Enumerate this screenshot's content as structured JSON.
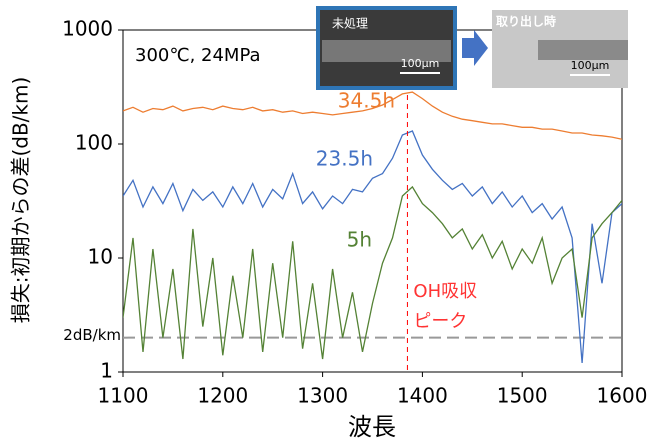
{
  "chart_data": {
    "type": "line",
    "annotation": "300℃, 24MPa",
    "xlabel": "波長",
    "ylabel": "損失:初期からの差(dB/km)",
    "x": [
      1100,
      1110,
      1120,
      1130,
      1140,
      1150,
      1160,
      1170,
      1180,
      1190,
      1200,
      1210,
      1220,
      1230,
      1240,
      1250,
      1260,
      1270,
      1280,
      1290,
      1300,
      1310,
      1320,
      1330,
      1340,
      1350,
      1360,
      1370,
      1380,
      1390,
      1400,
      1410,
      1420,
      1430,
      1440,
      1450,
      1460,
      1470,
      1480,
      1490,
      1500,
      1510,
      1520,
      1530,
      1540,
      1550,
      1560,
      1570,
      1580,
      1590,
      1600
    ],
    "series": [
      {
        "name": "34.5h",
        "color": "#ed7d31",
        "values": [
          195,
          210,
          190,
          205,
          200,
          215,
          195,
          205,
          210,
          200,
          215,
          205,
          200,
          210,
          195,
          200,
          190,
          195,
          185,
          190,
          185,
          180,
          185,
          190,
          195,
          205,
          220,
          245,
          275,
          285,
          250,
          215,
          190,
          175,
          165,
          160,
          155,
          150,
          150,
          145,
          140,
          140,
          135,
          135,
          130,
          125,
          125,
          120,
          118,
          115,
          110
        ]
      },
      {
        "name": "23.5h",
        "color": "#4472c4",
        "values": [
          35,
          48,
          28,
          42,
          30,
          45,
          26,
          40,
          32,
          38,
          28,
          42,
          30,
          45,
          28,
          40,
          33,
          55,
          30,
          38,
          27,
          35,
          30,
          40,
          38,
          50,
          55,
          75,
          120,
          130,
          80,
          60,
          48,
          40,
          45,
          35,
          42,
          30,
          38,
          28,
          35,
          25,
          30,
          22,
          28,
          15,
          1.2,
          20,
          6,
          25,
          30
        ]
      },
      {
        "name": "5h",
        "color": "#548235",
        "values": [
          3,
          15,
          1.5,
          12,
          2,
          8,
          1.3,
          18,
          2.5,
          10,
          1.4,
          7,
          2,
          12,
          1.5,
          9,
          2,
          14,
          1.6,
          6,
          1.3,
          8,
          2,
          5,
          1.5,
          4,
          9,
          15,
          35,
          42,
          30,
          25,
          20,
          15,
          18,
          12,
          16,
          10,
          14,
          8,
          12,
          9,
          15,
          6,
          10,
          12,
          3,
          15,
          20,
          25,
          32
        ]
      }
    ],
    "xlim": [
      1100,
      1600
    ],
    "xticks": [
      1100,
      1200,
      1300,
      1400,
      1500,
      1600
    ],
    "ylim": [
      1,
      1000
    ],
    "yticks": [
      1,
      10,
      100,
      1000
    ],
    "log_y": true,
    "reference_line": {
      "value": 2,
      "label": "2dB/km"
    },
    "peak": {
      "x": 1385,
      "label": [
        "OH吸収",
        "ピーク"
      ]
    },
    "insets": [
      {
        "label": "未処理",
        "scale": "100μm"
      },
      {
        "label": "取り出し時",
        "scale": "100μm"
      }
    ]
  }
}
